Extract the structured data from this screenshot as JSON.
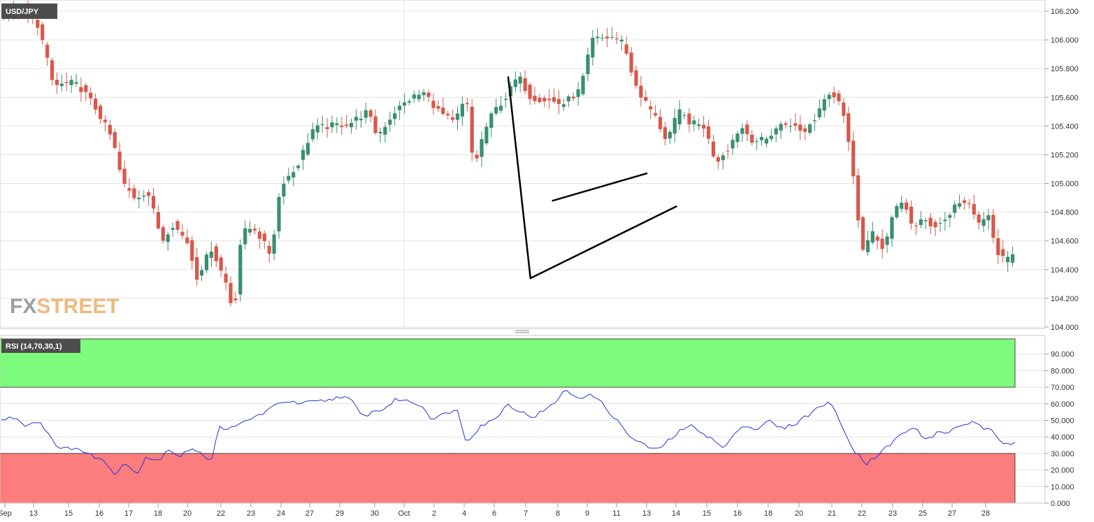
{
  "chart_data": [
    {
      "type": "candlestick",
      "symbol": "USD/JPY",
      "ylim": [
        104.0,
        106.2
      ],
      "y_ticks": [
        "104.000",
        "104.200",
        "104.400",
        "104.600",
        "104.800",
        "105.000",
        "105.200",
        "105.400",
        "105.600",
        "105.800",
        "106.000",
        "106.200"
      ],
      "x_ticks": [
        "Sep",
        "13",
        "15",
        "16",
        "17",
        "18",
        "20",
        "22",
        "23",
        "24",
        "27",
        "29",
        "30",
        "Oct",
        "2",
        "4",
        "6",
        "7",
        "8",
        "9",
        "11",
        "13",
        "14",
        "15",
        "16",
        "18",
        "20",
        "21",
        "22",
        "23",
        "25",
        "27",
        "28"
      ],
      "grid": true,
      "colors": {
        "up": "#3a8f6e",
        "down": "#d9574a",
        "grid": "#e4e4e4",
        "axis": "#c8c8c8"
      },
      "pattern": {
        "name": "bear flag",
        "pole": [
          [
            20.5,
            105.74
          ],
          [
            21.4,
            104.34
          ]
        ],
        "upper_line": [
          [
            22.3,
            104.88
          ],
          [
            26.1,
            105.07
          ]
        ],
        "lower_line": [
          [
            21.4,
            104.34
          ],
          [
            27.3,
            104.84
          ]
        ]
      },
      "waypoints": [
        [
          0.0,
          106.18
        ],
        [
          1.0,
          106.2
        ],
        [
          1.6,
          106.1
        ],
        [
          2.2,
          105.68
        ],
        [
          3.0,
          105.7
        ],
        [
          3.4,
          105.65
        ],
        [
          4.0,
          105.5
        ],
        [
          4.6,
          105.3
        ],
        [
          5.0,
          105.0
        ],
        [
          5.5,
          104.9
        ],
        [
          6.0,
          104.95
        ],
        [
          6.6,
          104.6
        ],
        [
          7.0,
          104.72
        ],
        [
          7.6,
          104.6
        ],
        [
          8.0,
          104.35
        ],
        [
          8.6,
          104.55
        ],
        [
          9.2,
          104.3
        ],
        [
          9.5,
          104.08
        ],
        [
          9.8,
          104.65
        ],
        [
          10.3,
          104.7
        ],
        [
          11.0,
          104.5
        ],
        [
          11.4,
          105.0
        ],
        [
          12.0,
          105.1
        ],
        [
          12.7,
          105.38
        ],
        [
          13.4,
          105.4
        ],
        [
          14.2,
          105.42
        ],
        [
          14.9,
          105.5
        ],
        [
          15.3,
          105.33
        ],
        [
          16.0,
          105.5
        ],
        [
          16.7,
          105.6
        ],
        [
          17.2,
          105.63
        ],
        [
          17.8,
          105.5
        ],
        [
          18.4,
          105.42
        ],
        [
          18.9,
          105.6
        ],
        [
          19.2,
          105.1
        ],
        [
          19.6,
          105.35
        ],
        [
          20.0,
          105.5
        ],
        [
          20.5,
          105.6
        ],
        [
          21.0,
          105.75
        ],
        [
          21.5,
          105.6
        ],
        [
          22.2,
          105.58
        ],
        [
          22.8,
          105.55
        ],
        [
          23.5,
          105.65
        ],
        [
          24.0,
          106.0
        ],
        [
          24.8,
          106.02
        ],
        [
          25.3,
          105.98
        ],
        [
          25.6,
          105.75
        ],
        [
          26.0,
          105.6
        ],
        [
          26.5,
          105.48
        ],
        [
          27.0,
          105.3
        ],
        [
          27.5,
          105.5
        ],
        [
          28.0,
          105.42
        ],
        [
          28.5,
          105.4
        ],
        [
          29.0,
          105.15
        ],
        [
          29.5,
          105.25
        ],
        [
          30.0,
          105.4
        ],
        [
          30.5,
          105.3
        ],
        [
          31.0,
          105.3
        ],
        [
          31.5,
          105.4
        ],
        [
          32.0,
          105.42
        ],
        [
          32.5,
          105.35
        ],
        [
          33.0,
          105.45
        ],
        [
          33.5,
          105.65
        ],
        [
          34.0,
          105.58
        ],
        [
          34.2,
          105.45
        ],
        [
          34.6,
          105.02
        ],
        [
          34.9,
          104.52
        ],
        [
          35.3,
          104.65
        ],
        [
          35.8,
          104.55
        ],
        [
          36.2,
          104.8
        ],
        [
          36.6,
          104.88
        ],
        [
          37.0,
          104.68
        ],
        [
          37.4,
          104.75
        ],
        [
          37.8,
          104.7
        ],
        [
          38.3,
          104.75
        ],
        [
          38.8,
          104.88
        ],
        [
          39.2,
          104.85
        ],
        [
          39.6,
          104.72
        ],
        [
          40.0,
          104.78
        ],
        [
          40.3,
          104.55
        ],
        [
          40.7,
          104.45
        ],
        [
          41.0,
          104.5
        ]
      ]
    },
    {
      "type": "line",
      "indicator": "RSI (14,70,30,1)",
      "ylim": [
        0,
        100
      ],
      "y_ticks": [
        "0.000",
        "10.000",
        "20.000",
        "30.000",
        "40.000",
        "50.000",
        "60.000",
        "70.000",
        "80.000",
        "90.000"
      ],
      "overbought": 70,
      "oversold": 30,
      "colors": {
        "line": "#2233dd",
        "overbought_zone": "#7dfb7d",
        "oversold_zone": "#fb7d7d"
      },
      "waypoints": [
        [
          0.0,
          50
        ],
        [
          0.5,
          52
        ],
        [
          1.0,
          47
        ],
        [
          1.5,
          50
        ],
        [
          2.0,
          40
        ],
        [
          2.4,
          32
        ],
        [
          3.0,
          34
        ],
        [
          3.4,
          30
        ],
        [
          4.0,
          27
        ],
        [
          4.6,
          18
        ],
        [
          5.0,
          25
        ],
        [
          5.5,
          17
        ],
        [
          5.8,
          28
        ],
        [
          6.4,
          26
        ],
        [
          6.8,
          33
        ],
        [
          7.2,
          27
        ],
        [
          7.7,
          34
        ],
        [
          8.2,
          29
        ],
        [
          8.5,
          25
        ],
        [
          8.8,
          46
        ],
        [
          9.4,
          45
        ],
        [
          9.8,
          49
        ],
        [
          10.4,
          53
        ],
        [
          10.9,
          57
        ],
        [
          11.4,
          62
        ],
        [
          12.0,
          60
        ],
        [
          12.6,
          61
        ],
        [
          13.2,
          62
        ],
        [
          13.8,
          65
        ],
        [
          14.2,
          61
        ],
        [
          14.6,
          52
        ],
        [
          15.0,
          55
        ],
        [
          15.5,
          57
        ],
        [
          16.0,
          63
        ],
        [
          16.6,
          61
        ],
        [
          17.0,
          59
        ],
        [
          17.4,
          51
        ],
        [
          18.0,
          54
        ],
        [
          18.4,
          58
        ],
        [
          18.8,
          37
        ],
        [
          19.4,
          47
        ],
        [
          19.9,
          50
        ],
        [
          20.5,
          60
        ],
        [
          21.0,
          55
        ],
        [
          21.5,
          52
        ],
        [
          22.2,
          58
        ],
        [
          22.8,
          68
        ],
        [
          23.3,
          64
        ],
        [
          24.0,
          65
        ],
        [
          24.6,
          55
        ],
        [
          25.0,
          48
        ],
        [
          25.5,
          39
        ],
        [
          26.0,
          35
        ],
        [
          26.5,
          32
        ],
        [
          27.0,
          38
        ],
        [
          27.5,
          44
        ],
        [
          28.0,
          47
        ],
        [
          28.4,
          42
        ],
        [
          28.8,
          38
        ],
        [
          29.2,
          33
        ],
        [
          29.6,
          40
        ],
        [
          30.0,
          48
        ],
        [
          30.5,
          44
        ],
        [
          31.0,
          50
        ],
        [
          31.5,
          45
        ],
        [
          32.0,
          47
        ],
        [
          32.5,
          52
        ],
        [
          33.0,
          57
        ],
        [
          33.5,
          62
        ],
        [
          34.0,
          46
        ],
        [
          34.5,
          32
        ],
        [
          35.0,
          24
        ],
        [
          35.5,
          30
        ],
        [
          36.0,
          36
        ],
        [
          36.5,
          43
        ],
        [
          37.0,
          45
        ],
        [
          37.4,
          38
        ],
        [
          37.8,
          42
        ],
        [
          38.3,
          43
        ],
        [
          38.8,
          47
        ],
        [
          39.2,
          49
        ],
        [
          39.6,
          46
        ],
        [
          40.0,
          44
        ],
        [
          40.4,
          37
        ],
        [
          40.8,
          36
        ],
        [
          41.0,
          38
        ]
      ]
    }
  ],
  "branding": {
    "fx": "FX",
    "street": "STREET"
  }
}
